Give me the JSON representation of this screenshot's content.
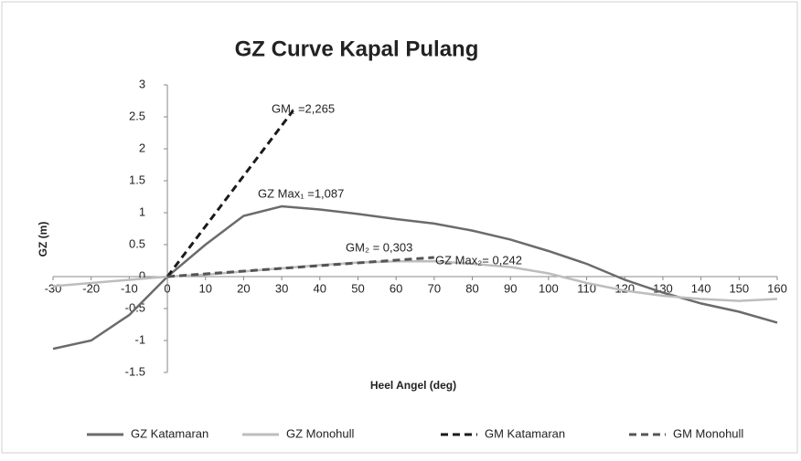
{
  "chart_data": {
    "type": "line",
    "title": "GZ Curve Kapal Pulang",
    "x_label": "Heel Angel (deg)",
    "y_label": "GZ (m)",
    "xlim": [
      -30,
      160
    ],
    "ylim": [
      -1.5,
      3
    ],
    "xticks": [
      -30,
      -20,
      -10,
      0,
      10,
      20,
      30,
      40,
      50,
      60,
      70,
      80,
      90,
      100,
      110,
      120,
      130,
      140,
      150,
      160
    ],
    "yticks": [
      -1.5,
      -1,
      -0.5,
      0,
      0.5,
      1,
      1.5,
      2,
      2.5,
      3
    ],
    "legend": "bottom",
    "series": [
      {
        "name": "GZ Katamaran",
        "color": "#6b6b6b",
        "dash": "solid",
        "x": [
          -30,
          -20,
          -10,
          0,
          10,
          20,
          30,
          40,
          50,
          60,
          70,
          80,
          90,
          100,
          110,
          120,
          130,
          140,
          150,
          160
        ],
        "values": [
          -1.13,
          -1.0,
          -0.6,
          0,
          0.5,
          0.95,
          1.1,
          1.05,
          0.98,
          0.9,
          0.83,
          0.72,
          0.58,
          0.4,
          0.2,
          -0.05,
          -0.25,
          -0.42,
          -0.55,
          -0.72
        ]
      },
      {
        "name": "GZ Monohull",
        "color": "#bdbdbd",
        "dash": "solid",
        "x": [
          -30,
          -20,
          -10,
          0,
          10,
          20,
          30,
          40,
          50,
          60,
          70,
          80,
          90,
          100,
          110,
          120,
          130,
          140,
          150,
          160
        ],
        "values": [
          -0.15,
          -0.1,
          -0.05,
          0,
          0.03,
          0.08,
          0.13,
          0.18,
          0.22,
          0.24,
          0.242,
          0.2,
          0.15,
          0.05,
          -0.1,
          -0.22,
          -0.3,
          -0.35,
          -0.38,
          -0.35
        ]
      },
      {
        "name": "GM Katamaran",
        "color": "#1a1a1a",
        "dash": "dashed",
        "x": [
          0,
          33
        ],
        "values": [
          0,
          2.6
        ]
      },
      {
        "name": "GM Monohull",
        "color": "#555555",
        "dash": "dashed",
        "x": [
          0,
          70
        ],
        "values": [
          0,
          0.3
        ]
      }
    ],
    "annotations": [
      "GM₁ =2,265",
      "GZ Max₁ =1,087",
      "GM₂ = 0,303",
      "GZ Max₂= 0,242"
    ]
  }
}
